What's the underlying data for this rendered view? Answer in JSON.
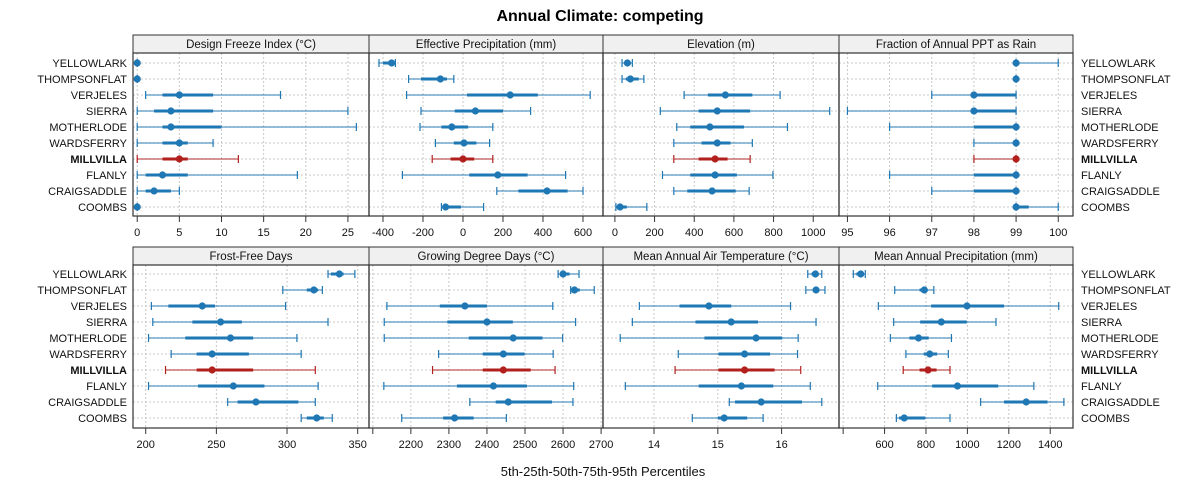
{
  "chart_data": {
    "type": "dot-interval",
    "title": "Annual Climate: competing",
    "xlabel": "5th-25th-50th-75th-95th Percentiles",
    "grid": true,
    "series_stats": [
      "p5",
      "p25",
      "p50",
      "p75",
      "p95"
    ],
    "categories": [
      "YELLOWLARK",
      "THOMPSONFLAT",
      "VERJELES",
      "SIERRA",
      "MOTHERLODE",
      "WARDSFERRY",
      "MILLVILLA",
      "FLANLY",
      "CRAIGSADDLE",
      "COOMBS"
    ],
    "highlight": "MILLVILLA",
    "colors": {
      "default": "#1f77b4",
      "highlight": "#b2201e"
    },
    "panels": [
      {
        "title": "Design Freeze Index (°C)",
        "xlim": [
          -0.5,
          27.5
        ],
        "ticks": [
          0,
          5,
          10,
          15,
          20,
          25
        ],
        "tick_labels": [
          "0",
          "5",
          "10",
          "15",
          "20",
          "25"
        ],
        "values": [
          [
            0,
            0,
            0,
            0,
            0
          ],
          [
            0,
            0,
            0,
            0,
            0
          ],
          [
            1,
            3,
            5,
            9,
            17
          ],
          [
            0,
            2,
            4,
            9,
            25
          ],
          [
            0,
            3,
            4,
            10,
            26
          ],
          [
            0,
            3,
            5,
            6,
            9
          ],
          [
            0,
            3,
            5,
            6,
            12
          ],
          [
            0,
            1,
            3,
            6,
            19
          ],
          [
            0,
            1,
            2,
            4,
            5
          ],
          [
            0,
            0,
            0,
            0,
            0
          ]
        ]
      },
      {
        "title": "Effective Precipitation (mm)",
        "xlim": [
          -470,
          700
        ],
        "ticks": [
          -400,
          -200,
          0,
          200,
          400,
          600
        ],
        "tick_labels": [
          "-400",
          "-200",
          "0",
          "200",
          "400",
          "600"
        ],
        "values": [
          [
            -420,
            -400,
            -357,
            -345,
            -338
          ],
          [
            -272,
            -210,
            -113,
            -80,
            -46
          ],
          [
            -282,
            20,
            236,
            374,
            636
          ],
          [
            -210,
            -41,
            62,
            200,
            338
          ],
          [
            -215,
            -108,
            -56,
            26,
            149
          ],
          [
            -138,
            -46,
            5,
            67,
            133
          ],
          [
            -154,
            -62,
            0,
            56,
            149
          ],
          [
            -303,
            31,
            174,
            323,
            513
          ],
          [
            169,
            277,
            420,
            523,
            600
          ],
          [
            -108,
            -95,
            -87,
            -10,
            103
          ]
        ]
      },
      {
        "title": "Elevation (m)",
        "xlim": [
          -60,
          1130
        ],
        "ticks": [
          0,
          200,
          400,
          600,
          800,
          1000
        ],
        "tick_labels": [
          "0",
          "200",
          "400",
          "600",
          "800",
          "1000"
        ],
        "values": [
          [
            36,
            50,
            63,
            75,
            88
          ],
          [
            36,
            55,
            78,
            120,
            146
          ],
          [
            349,
            469,
            557,
            693,
            833
          ],
          [
            229,
            422,
            516,
            682,
            1083
          ],
          [
            312,
            380,
            479,
            651,
            870
          ],
          [
            297,
            437,
            516,
            583,
            693
          ],
          [
            297,
            422,
            505,
            568,
            682
          ],
          [
            240,
            380,
            505,
            615,
            797
          ],
          [
            297,
            365,
            490,
            609,
            677
          ],
          [
            5,
            15,
            26,
            60,
            161
          ]
        ]
      },
      {
        "title": "Fraction of Annual PPT as Rain",
        "xlim": [
          94.8,
          100.35
        ],
        "ticks": [
          95,
          96,
          97,
          98,
          99,
          100
        ],
        "tick_labels": [
          "95",
          "96",
          "97",
          "98",
          "99",
          "100"
        ],
        "values": [
          [
            99,
            99,
            99,
            99,
            100
          ],
          [
            99,
            99,
            99,
            99,
            99
          ],
          [
            97,
            98,
            98,
            99,
            99
          ],
          [
            95,
            98,
            98,
            99,
            99
          ],
          [
            96,
            98,
            99,
            99,
            99
          ],
          [
            98,
            99,
            99,
            99,
            99
          ],
          [
            98,
            99,
            99,
            99,
            99
          ],
          [
            96,
            98,
            99,
            99,
            99
          ],
          [
            97,
            98,
            99,
            99,
            99
          ],
          [
            99,
            99,
            99,
            99.3,
            100
          ]
        ]
      },
      {
        "title": "Frost-Free Days",
        "xlim": [
          191,
          358
        ],
        "ticks": [
          200,
          250,
          300,
          350
        ],
        "tick_labels": [
          "200",
          "250",
          "300",
          "350"
        ],
        "values": [
          [
            329,
            331,
            337,
            340,
            348
          ],
          [
            297,
            314,
            319,
            322,
            325
          ],
          [
            204,
            216,
            240,
            249,
            299
          ],
          [
            205,
            233,
            253,
            268,
            329
          ],
          [
            202,
            228,
            260,
            276,
            307
          ],
          [
            218,
            236,
            247,
            273,
            310
          ],
          [
            214,
            236,
            247,
            276,
            320
          ],
          [
            202,
            237,
            262,
            284,
            322
          ],
          [
            258,
            265,
            278,
            308,
            320
          ],
          [
            310,
            314,
            321,
            326,
            332
          ]
        ]
      },
      {
        "title": "Growing Degree Days (°C)",
        "xlim": [
          2090,
          2705
        ],
        "ticks": [
          2100,
          2200,
          2300,
          2400,
          2500,
          2600,
          2700
        ],
        "tick_labels": [
          "",
          "2200",
          "2300",
          "2400",
          "2500",
          "2600",
          "2700"
        ],
        "values": [
          [
            2587,
            2595,
            2600,
            2617,
            2642
          ],
          [
            2620,
            2623,
            2630,
            2644,
            2682
          ],
          [
            2137,
            2276,
            2342,
            2400,
            2573
          ],
          [
            2130,
            2296,
            2400,
            2468,
            2633
          ],
          [
            2130,
            2352,
            2469,
            2546,
            2599
          ],
          [
            2273,
            2389,
            2443,
            2499,
            2574
          ],
          [
            2257,
            2389,
            2443,
            2515,
            2579
          ],
          [
            2129,
            2321,
            2417,
            2505,
            2628
          ],
          [
            2355,
            2423,
            2456,
            2571,
            2626
          ],
          [
            2176,
            2285,
            2315,
            2365,
            2451
          ]
        ]
      },
      {
        "title": "Mean Annual Air Temperature (°C)",
        "xlim": [
          13.2,
          16.9
        ],
        "ticks": [
          14,
          15,
          16,
          17
        ],
        "tick_labels": [
          "14",
          "15",
          "16",
          ""
        ],
        "values": [
          [
            16.41,
            16.47,
            16.53,
            16.56,
            16.63
          ],
          [
            16.38,
            16.49,
            16.54,
            16.59,
            16.68
          ],
          [
            13.77,
            14.4,
            14.86,
            15.21,
            16.14
          ],
          [
            13.66,
            14.65,
            15.21,
            15.63,
            16.54
          ],
          [
            13.47,
            14.79,
            15.6,
            16.01,
            16.26
          ],
          [
            14.38,
            15.01,
            15.42,
            15.82,
            16.25
          ],
          [
            14.33,
            15.01,
            15.42,
            15.89,
            16.3
          ],
          [
            13.55,
            14.7,
            15.37,
            15.87,
            16.45
          ],
          [
            15.18,
            15.27,
            15.68,
            16.32,
            16.63
          ],
          [
            14.6,
            15.0,
            15.1,
            15.46,
            15.71
          ]
        ]
      },
      {
        "title": "Mean Annual Precipitation (mm)",
        "xlim": [
          380,
          1510
        ],
        "ticks": [
          400,
          600,
          800,
          1000,
          1200,
          1400
        ],
        "tick_labels": [
          "",
          "600",
          "800",
          "1000",
          "1200",
          "1400"
        ],
        "values": [
          [
            449,
            464,
            485,
            497,
            507
          ],
          [
            649,
            769,
            792,
            805,
            838
          ],
          [
            570,
            825,
            998,
            1177,
            1441
          ],
          [
            644,
            772,
            874,
            997,
            1138
          ],
          [
            628,
            720,
            764,
            813,
            923
          ],
          [
            703,
            789,
            818,
            854,
            908
          ],
          [
            690,
            769,
            810,
            851,
            916
          ],
          [
            567,
            830,
            952,
            1149,
            1321
          ],
          [
            1064,
            1177,
            1284,
            1387,
            1466
          ],
          [
            657,
            670,
            695,
            797,
            916
          ]
        ]
      }
    ]
  }
}
